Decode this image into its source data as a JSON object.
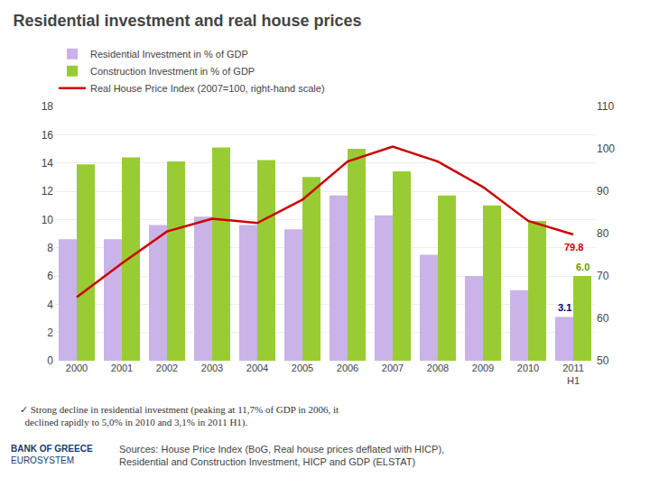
{
  "chart_data": {
    "type": "bar",
    "title": "Residential investment and real house prices",
    "categories": [
      "2000",
      "2001",
      "2002",
      "2003",
      "2004",
      "2005",
      "2006",
      "2007",
      "2008",
      "2009",
      "2010",
      "2011\nH1"
    ],
    "series": [
      {
        "name": "Residential Investment in % of GDP",
        "color": "#c9b3e8",
        "values": [
          8.6,
          8.6,
          9.6,
          10.2,
          9.6,
          9.3,
          11.7,
          10.3,
          7.5,
          6.0,
          5.0,
          3.1
        ]
      },
      {
        "name": "Construction Investment in % of GDP",
        "color": "#99cc33",
        "values": [
          13.9,
          14.4,
          14.1,
          15.1,
          14.2,
          13.0,
          15.0,
          13.4,
          11.7,
          11.0,
          9.9,
          6.0
        ]
      },
      {
        "name": "Real House Price Index (2007=100, right-hand scale)",
        "type": "line",
        "axis": "y2",
        "color": "#cc0000",
        "values": [
          65.0,
          73.0,
          80.5,
          83.5,
          82.5,
          88.0,
          97.0,
          100.5,
          97.0,
          91.0,
          83.0,
          79.8
        ]
      }
    ],
    "ylim": [
      0,
      18
    ],
    "yticks": [
      0,
      2,
      4,
      6,
      8,
      10,
      12,
      14,
      16,
      18
    ],
    "y2lim": [
      50,
      110
    ],
    "y2ticks": [
      50,
      60,
      70,
      80,
      90,
      100,
      110
    ],
    "grid": true,
    "legend": "upper left",
    "annotations": [
      {
        "text": "3.1",
        "category": "2011\nH1",
        "y": 3.1,
        "series": "Residential Investment in % of GDP",
        "color": "#000066"
      },
      {
        "text": "6.0",
        "category": "2011\nH1",
        "y": 6.0,
        "series": "Construction Investment in % of GDP",
        "color": "#669900"
      },
      {
        "text": "79.8",
        "category": "2011\nH1",
        "y": 79.8,
        "series": "Real House Price Index (2007=100, right-hand scale)",
        "color": "#cc0000"
      }
    ],
    "footer_text": "✓ Strong decline in residential investment (peaking at 11,7% of GDP in 2006, it\n  declined rapidly to 5,0% in 2010 and 3,1% in 2011 H1).",
    "logo_texts": [
      "BANK OF GREECE",
      "EUROSYSTEM"
    ],
    "sources_text": "Sources: House Price Index (BoG, Real house prices deflated with HICP),\nResidential and Construction Investment, HICP and GDP (ELSTAT)"
  }
}
